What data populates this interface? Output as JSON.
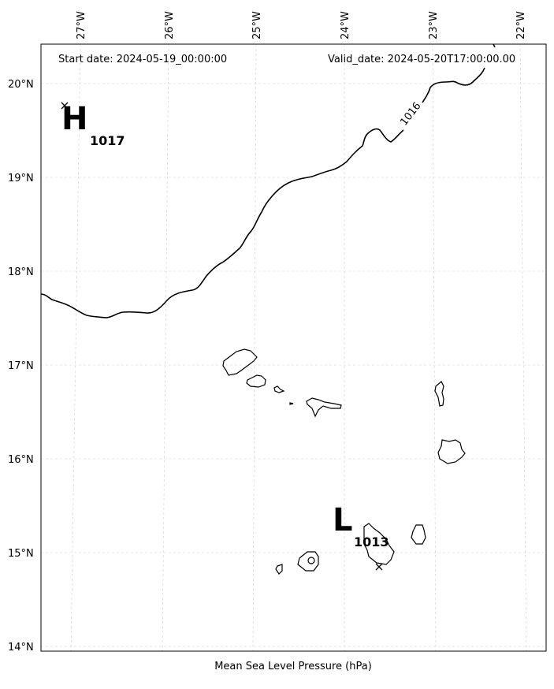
{
  "map": {
    "start_label": "Start date: 2024-05-19_00:00:00",
    "valid_label": "Valid_date: 2024-05-20T17:00:00.00",
    "caption": "Mean Sea Level Pressure (hPa)",
    "lon_ticks": [
      "27°W",
      "26°W",
      "25°W",
      "24°W",
      "23°W",
      "22°W"
    ],
    "lat_ticks": [
      "20°N",
      "19°N",
      "18°N",
      "17°N",
      "16°N",
      "15°N",
      "14°N"
    ],
    "high": {
      "letter": "H",
      "value": "1017"
    },
    "low": {
      "letter": "L",
      "value": "1013"
    },
    "isobar_label": "1016",
    "colors": {
      "line": "#000000",
      "grid": "#cccccc",
      "frame": "#000000"
    }
  }
}
